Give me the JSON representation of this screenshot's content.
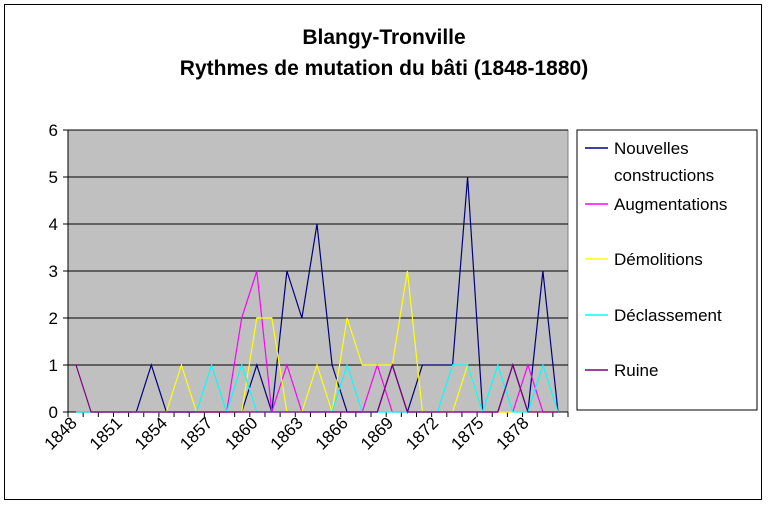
{
  "chart_data": {
    "type": "line",
    "title": [
      "Blangy-Tronville",
      "Rythmes de mutation du bâti (1848-1880)"
    ],
    "xlabel": "",
    "ylabel": "",
    "x": [
      1848,
      1849,
      1850,
      1851,
      1852,
      1853,
      1854,
      1855,
      1856,
      1857,
      1858,
      1859,
      1860,
      1861,
      1862,
      1863,
      1864,
      1865,
      1866,
      1867,
      1868,
      1869,
      1870,
      1871,
      1872,
      1873,
      1874,
      1875,
      1876,
      1877,
      1878,
      1879,
      1880
    ],
    "x_tick_labels": [
      "1848",
      "1851",
      "1854",
      "1857",
      "1860",
      "1863",
      "1866",
      "1869",
      "1872",
      "1875",
      "1878"
    ],
    "ylim": [
      0,
      6
    ],
    "y_ticks": [
      0,
      1,
      2,
      3,
      4,
      5,
      6
    ],
    "grid": true,
    "legend_position": "right",
    "series": [
      {
        "name": "Nouvelles constructions",
        "color": "#000080",
        "values": [
          0,
          0,
          0,
          0,
          0,
          1,
          0,
          0,
          0,
          0,
          0,
          0,
          1,
          0,
          3,
          2,
          4,
          1,
          0,
          0,
          0,
          1,
          0,
          1,
          1,
          1,
          5,
          0,
          0,
          1,
          0,
          3,
          0
        ]
      },
      {
        "name": "Augmentations",
        "color": "#ff00ff",
        "values": [
          0,
          0,
          0,
          0,
          0,
          0,
          0,
          0,
          0,
          0,
          0,
          2,
          3,
          0,
          1,
          0,
          0,
          0,
          0,
          0,
          1,
          0,
          0,
          0,
          0,
          0,
          0,
          0,
          0,
          0,
          1,
          0,
          0
        ]
      },
      {
        "name": "Démolitions",
        "color": "#ffff00",
        "values": [
          0,
          0,
          0,
          0,
          0,
          0,
          0,
          1,
          0,
          0,
          0,
          0,
          2,
          2,
          0,
          0,
          1,
          0,
          2,
          1,
          1,
          1,
          3,
          0,
          0,
          0,
          1,
          0,
          0,
          0,
          0,
          0,
          0
        ]
      },
      {
        "name": "Déclassement",
        "color": "#00ffff",
        "values": [
          0,
          0,
          0,
          0,
          0,
          0,
          0,
          0,
          0,
          1,
          0,
          1,
          0,
          0,
          0,
          0,
          0,
          0,
          1,
          0,
          0,
          0,
          0,
          0,
          0,
          1,
          1,
          0,
          1,
          0,
          0,
          1,
          0
        ]
      },
      {
        "name": "Ruine",
        "color": "#800080",
        "values": [
          1,
          0,
          0,
          0,
          0,
          0,
          0,
          0,
          0,
          0,
          0,
          0,
          0,
          0,
          0,
          0,
          0,
          0,
          0,
          0,
          0,
          1,
          0,
          0,
          0,
          0,
          0,
          0,
          0,
          1,
          0,
          0,
          0
        ]
      }
    ]
  }
}
